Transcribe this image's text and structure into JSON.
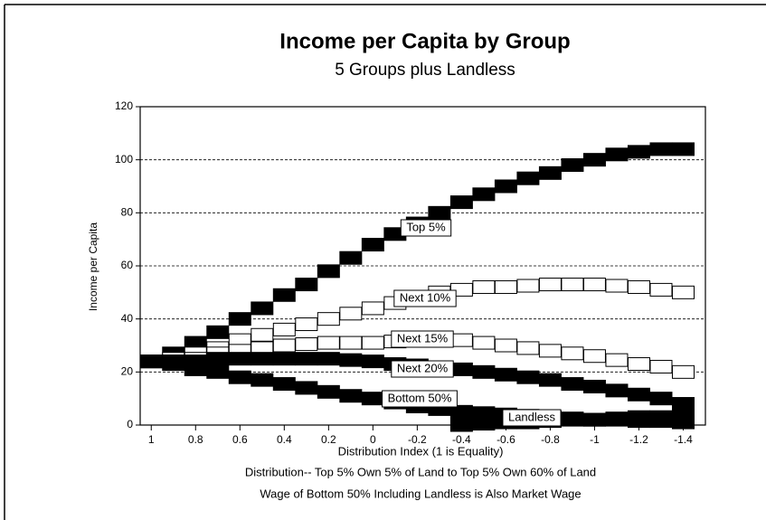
{
  "chart_data": {
    "type": "scatter",
    "title": "Income per Capita by Group",
    "subtitle": "5 Groups plus Landless",
    "x_label": "Distribution Index (1 is Equality)",
    "y_label": "Income per Capita",
    "notes": [
      "Distribution-- Top 5% Own 5% of Land to Top 5% Own 60% of Land",
      "Wage of Bottom 50% Including Landless is Also Market Wage"
    ],
    "x": [
      1,
      0.9,
      0.8,
      0.7,
      0.6,
      0.5,
      0.4,
      0.3,
      0.2,
      0.1,
      0,
      -0.1,
      -0.2,
      -0.3,
      -0.4,
      -0.5,
      -0.6,
      -0.7,
      -0.8,
      -0.9,
      -1,
      -1.1,
      -1.2,
      -1.3,
      -1.4
    ],
    "xlim": [
      1.05,
      -1.5
    ],
    "xticks": [
      1,
      0.8,
      0.6,
      0.4,
      0.2,
      0,
      -0.2,
      -0.4,
      -0.6,
      -0.8,
      -1,
      -1.2,
      -1.4
    ],
    "ylim": [
      0,
      120
    ],
    "yticks": [
      0,
      20,
      40,
      60,
      80,
      100,
      120
    ],
    "grid": true,
    "series": [
      {
        "name": "Top 5%",
        "color": "#000000",
        "marker_fill": "#000000",
        "values": [
          24,
          27,
          31,
          35,
          40,
          44,
          49,
          53,
          58,
          63,
          68,
          72,
          76,
          80,
          84,
          87,
          90,
          93,
          95,
          98,
          100,
          102,
          103,
          104,
          104
        ]
      },
      {
        "name": "Next 10%",
        "color": "#000000",
        "marker_fill": "#ffffff",
        "values": [
          24,
          25,
          27,
          29,
          32,
          34,
          36,
          38,
          40,
          42,
          44,
          46,
          48,
          50,
          51,
          52,
          52,
          52.5,
          53,
          53,
          53,
          52.5,
          52,
          51,
          50
        ]
      },
      {
        "name": "Next 15%",
        "color": "#000000",
        "marker_fill": "#ffffff",
        "values": [
          24,
          24,
          25,
          27,
          28,
          29,
          30,
          30.5,
          31,
          31,
          31,
          31.5,
          32,
          32,
          32,
          31,
          30,
          29,
          28,
          27,
          26,
          24.5,
          23,
          22,
          20
        ]
      },
      {
        "name": "Next 20%",
        "color": "#000000",
        "marker_fill": "#000000",
        "values": [
          24,
          24,
          24,
          25,
          25,
          25,
          25,
          25,
          25,
          24.5,
          24,
          23,
          22.5,
          21.5,
          21,
          20,
          19,
          18,
          17,
          15.5,
          14.5,
          13,
          11.5,
          10,
          8
        ]
      },
      {
        "name": "Bottom 50%",
        "color": "#000000",
        "marker_fill": "#000000",
        "values": [
          24,
          23,
          21,
          20,
          18,
          17,
          15.5,
          14,
          12.5,
          11,
          10,
          8.5,
          7,
          6,
          5,
          4.5,
          4,
          3.5,
          3,
          2.5,
          2,
          2,
          1.5,
          1.5,
          1
        ]
      },
      {
        "name": "Landless",
        "color": "#000000",
        "marker_fill": "#000000",
        "values": [
          null,
          null,
          null,
          null,
          null,
          null,
          null,
          null,
          null,
          null,
          null,
          null,
          null,
          null,
          0,
          0.5,
          1,
          1,
          1.5,
          2,
          2,
          2.5,
          3,
          3,
          3.5
        ]
      }
    ]
  }
}
